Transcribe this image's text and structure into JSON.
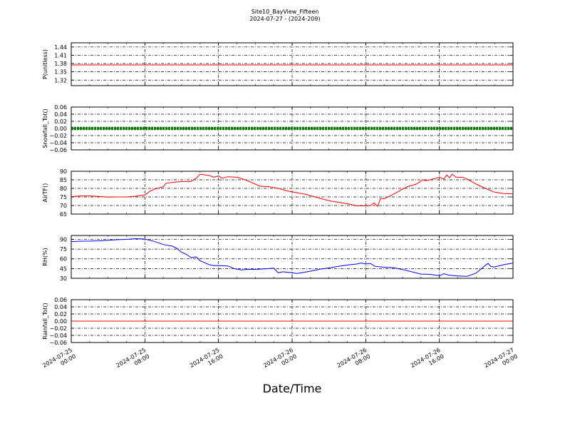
{
  "chart_data": {
    "type": "line",
    "title": "Site10_BayView_Fifteen",
    "subtitle": "2024-07-27 - (2024-209)",
    "xlabel": "Date/Time",
    "xlim": [
      0,
      48
    ],
    "x_ticks": [
      0,
      8,
      16,
      24,
      32,
      40,
      48
    ],
    "x_tick_labels": [
      [
        "2024-07-25",
        "00:00"
      ],
      [
        "2024-07-25",
        "08:00"
      ],
      [
        "2024-07-25",
        "16:00"
      ],
      [
        "2024-07-26",
        "00:00"
      ],
      [
        "2024-07-26",
        "08:00"
      ],
      [
        "2024-07-26",
        "16:00"
      ],
      [
        "2024-07-27",
        "00:00"
      ]
    ],
    "grid": true,
    "panels": [
      {
        "ylabel": "P(unitless)",
        "ylim": [
          1.3,
          1.455
        ],
        "yticks": [
          1.32,
          1.35,
          1.38,
          1.41,
          1.44
        ],
        "ytick_labels": [
          "1.32",
          "1.35",
          "1.38",
          "1.41",
          "1.44"
        ],
        "color": "#ff0000",
        "style": "line",
        "points": [
          [
            0,
            1.375
          ],
          [
            48,
            1.375
          ]
        ]
      },
      {
        "ylabel": "Snowfall_Tot()",
        "ylim": [
          -0.06,
          0.06
        ],
        "yticks": [
          -0.06,
          -0.04,
          -0.02,
          0.0,
          0.02,
          0.04,
          0.06
        ],
        "ytick_labels": [
          "−0.06",
          "−0.04",
          "−0.02",
          "0.00",
          "0.02",
          "0.04",
          "0.06"
        ],
        "color": "#008000",
        "style": "thick",
        "points": [
          [
            0,
            0
          ],
          [
            48,
            0
          ]
        ]
      },
      {
        "ylabel": "AirTF()",
        "ylim": [
          65,
          90
        ],
        "yticks": [
          65,
          70,
          75,
          80,
          85,
          90
        ],
        "ytick_labels": [
          "65",
          "70",
          "75",
          "80",
          "85",
          "90"
        ],
        "color": "#ff0000",
        "style": "line",
        "points": [
          [
            0,
            75.2
          ],
          [
            1,
            75.6
          ],
          [
            2,
            75.6
          ],
          [
            3,
            75.3
          ],
          [
            4,
            74.9
          ],
          [
            5,
            75.0
          ],
          [
            6,
            75.0
          ],
          [
            7,
            75.4
          ],
          [
            8,
            76.2
          ],
          [
            8.6,
            78.5
          ],
          [
            9,
            79.5
          ],
          [
            9.4,
            80.0
          ],
          [
            10,
            81.0
          ],
          [
            10.3,
            83.0
          ],
          [
            11,
            83.5
          ],
          [
            12,
            84.0
          ],
          [
            13,
            84.0
          ],
          [
            13.6,
            86.0
          ],
          [
            14,
            88.3
          ],
          [
            15,
            87.5
          ],
          [
            15.5,
            86.5
          ],
          [
            16,
            87.2
          ],
          [
            16.4,
            86.0
          ],
          [
            17,
            86.8
          ],
          [
            18,
            86.5
          ],
          [
            19,
            84.8
          ],
          [
            20,
            82.5
          ],
          [
            20.5,
            81.3
          ],
          [
            21.5,
            81.0
          ],
          [
            22.5,
            80.0
          ],
          [
            23.5,
            78.5
          ],
          [
            24.5,
            77.5
          ],
          [
            25.5,
            76.5
          ],
          [
            26.5,
            75.0
          ],
          [
            27.5,
            73.5
          ],
          [
            28.5,
            72.3
          ],
          [
            29.5,
            71.5
          ],
          [
            30.5,
            70.5
          ],
          [
            31,
            69.8
          ],
          [
            32,
            69.8
          ],
          [
            32.5,
            70.0
          ],
          [
            32.9,
            71.5
          ],
          [
            33.3,
            69.5
          ],
          [
            33.6,
            74.0
          ],
          [
            34,
            74.0
          ],
          [
            34.8,
            76.0
          ],
          [
            35.5,
            78.0
          ],
          [
            35.8,
            79.0
          ],
          [
            36.5,
            81.0
          ],
          [
            37.5,
            82.5
          ],
          [
            38.2,
            85.0
          ],
          [
            38.5,
            84.5
          ],
          [
            39,
            85.0
          ],
          [
            40,
            86.5
          ],
          [
            40.5,
            85.5
          ],
          [
            40.8,
            87.8
          ],
          [
            41.1,
            86.2
          ],
          [
            41.4,
            88.3
          ],
          [
            41.8,
            86.5
          ],
          [
            42.5,
            86.5
          ],
          [
            43,
            85.5
          ],
          [
            44,
            82.5
          ],
          [
            45,
            80.0
          ],
          [
            46,
            77.8
          ],
          [
            47,
            77.0
          ],
          [
            48,
            76.8
          ]
        ]
      },
      {
        "ylabel": "RH(%)",
        "ylim": [
          30,
          96
        ],
        "yticks": [
          30,
          45,
          60,
          75,
          90
        ],
        "ytick_labels": [
          "30",
          "45",
          "60",
          "75",
          "90"
        ],
        "color": "#0000ff",
        "style": "line",
        "points": [
          [
            0,
            86.5
          ],
          [
            1,
            87.2
          ],
          [
            2,
            87.3
          ],
          [
            3,
            87.8
          ],
          [
            4,
            88.5
          ],
          [
            5,
            89.5
          ],
          [
            6,
            90.0
          ],
          [
            7,
            91.0
          ],
          [
            8,
            90.5
          ],
          [
            9,
            87.0
          ],
          [
            10,
            82.0
          ],
          [
            11,
            79.5
          ],
          [
            11.5,
            76.0
          ],
          [
            12,
            70.0
          ],
          [
            12.5,
            67.0
          ],
          [
            13,
            62.0
          ],
          [
            13.6,
            63.0
          ],
          [
            14,
            57.0
          ],
          [
            15,
            51.0
          ],
          [
            15.5,
            49.5
          ],
          [
            16,
            49.5
          ],
          [
            17,
            49.0
          ],
          [
            17.8,
            44.5
          ],
          [
            18.5,
            43.0
          ],
          [
            19,
            43.8
          ],
          [
            20,
            43.8
          ],
          [
            21,
            44.5
          ],
          [
            22,
            45.5
          ],
          [
            22.5,
            38.5
          ],
          [
            23,
            40.0
          ],
          [
            24,
            38.5
          ],
          [
            24.5,
            37.5
          ],
          [
            25,
            38.5
          ],
          [
            26,
            41.0
          ],
          [
            27,
            44.0
          ],
          [
            28,
            46.0
          ],
          [
            29,
            48.5
          ],
          [
            30,
            50.5
          ],
          [
            31,
            52.0
          ],
          [
            31.5,
            53.5
          ],
          [
            32,
            52.0
          ],
          [
            32.5,
            53.0
          ],
          [
            33,
            48.5
          ],
          [
            34,
            47.0
          ],
          [
            35,
            46.5
          ],
          [
            36,
            43.5
          ],
          [
            37,
            40.0
          ],
          [
            38,
            36.5
          ],
          [
            39,
            36.0
          ],
          [
            40,
            34.0
          ],
          [
            40.5,
            37.0
          ],
          [
            41,
            35.0
          ],
          [
            42,
            33.5
          ],
          [
            43,
            33.0
          ],
          [
            44,
            38.0
          ],
          [
            44.5,
            44.0
          ],
          [
            45,
            50.0
          ],
          [
            45.3,
            53.0
          ],
          [
            45.6,
            48.0
          ],
          [
            46,
            47.5
          ],
          [
            47,
            51.0
          ],
          [
            48,
            53.5
          ]
        ]
      },
      {
        "ylabel": "Rainfall_Tot()",
        "ylim": [
          -0.06,
          0.06
        ],
        "yticks": [
          -0.06,
          -0.04,
          -0.02,
          0.0,
          0.02,
          0.04,
          0.06
        ],
        "ytick_labels": [
          "−0.06",
          "−0.04",
          "−0.02",
          "0.00",
          "0.02",
          "0.04",
          "0.06"
        ],
        "color": "#ff0000",
        "style": "line",
        "points": [
          [
            0,
            0
          ],
          [
            48,
            0
          ]
        ]
      }
    ]
  }
}
